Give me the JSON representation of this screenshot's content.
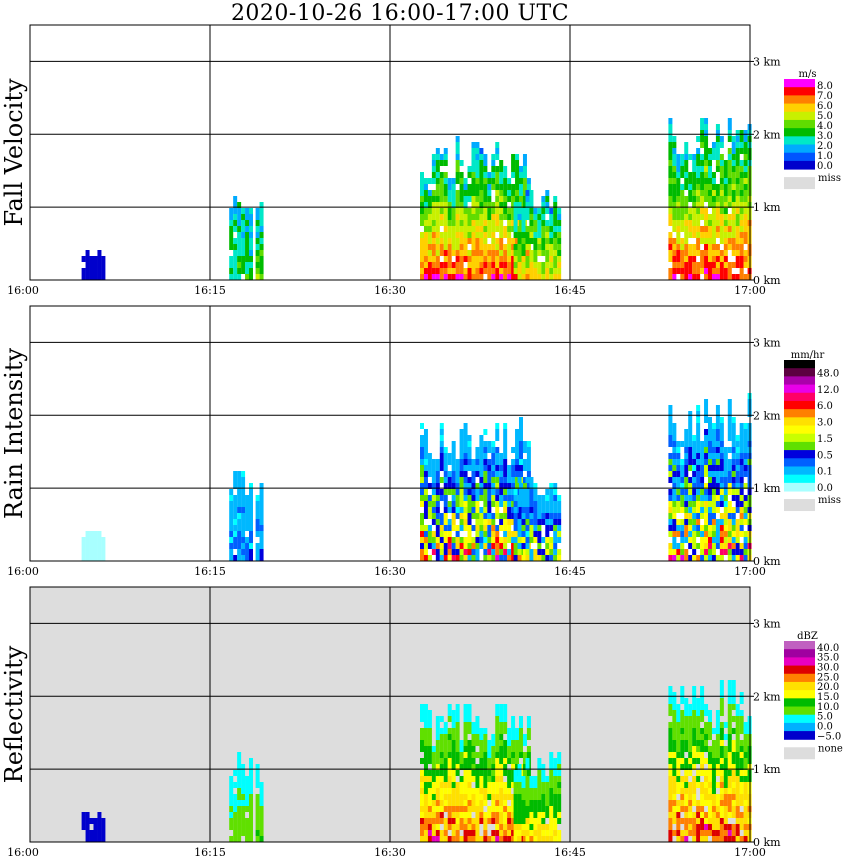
{
  "title": "2020-10-26   16:00-17:00 UTC",
  "chart_data": [
    {
      "type": "heatmap",
      "ylabel": "Fall Velocity",
      "x_ticks": [
        "16:00",
        "16:15",
        "16:30",
        "16:45",
        "17:00"
      ],
      "y_ticks": [
        "0 km",
        "1 km",
        "2 km",
        "3 km"
      ],
      "background": "#ffffff",
      "legend": {
        "title": "m/s",
        "labels": [
          "8.0",
          "7.0",
          "6.0",
          "5.0",
          "4.0",
          "3.0",
          "2.0",
          "1.0",
          "0.0"
        ],
        "colors": [
          "#ff00ff",
          "#ff0000",
          "#ff7f00",
          "#ffd000",
          "#c8f000",
          "#60dc00",
          "#00bb00",
          "#00e8c8",
          "#00aaff",
          "#0055ff",
          "#0000cc"
        ],
        "missing_label": "miss",
        "missing_color": "#dddddd"
      }
    },
    {
      "type": "heatmap",
      "ylabel": "Rain Intensity",
      "x_ticks": [
        "16:00",
        "16:15",
        "16:30",
        "16:45",
        "17:00"
      ],
      "y_ticks": [
        "0 km",
        "1 km",
        "2 km",
        "3 km"
      ],
      "background": "#ffffff",
      "legend": {
        "title": "mm/hr",
        "labels": [
          "48.0",
          "12.0",
          "6.0",
          "3.0",
          "1.5",
          "0.5",
          "0.1",
          "0.0"
        ],
        "colors": [
          "#000000",
          "#5c0040",
          "#aa00aa",
          "#e800e8",
          "#ff0066",
          "#ff0000",
          "#ff8000",
          "#ffe000",
          "#ffff00",
          "#c8ff00",
          "#60e000",
          "#0000dd",
          "#0060ff",
          "#00b8ff",
          "#00ffff",
          "#a8ffff"
        ],
        "missing_label": "miss",
        "missing_color": "#dddddd"
      }
    },
    {
      "type": "heatmap",
      "ylabel": "Reflectivity",
      "x_ticks": [
        "16:00",
        "16:15",
        "16:30",
        "16:45",
        "17:00"
      ],
      "y_ticks": [
        "0 km",
        "1 km",
        "2 km",
        "3 km"
      ],
      "background": "#dddddd",
      "legend": {
        "title": "dBZ",
        "labels": [
          "40.0",
          "35.0",
          "30.0",
          "25.0",
          "20.0",
          "15.0",
          "10.0",
          "5.0",
          "0.0",
          "−5.0"
        ],
        "colors": [
          "#c060c0",
          "#a000a0",
          "#e800c0",
          "#dd0000",
          "#ff8000",
          "#ffe000",
          "#ffff00",
          "#00bb00",
          "#60e000",
          "#00ffff",
          "#00b0ff",
          "#0000cc"
        ],
        "missing_label": "none",
        "missing_color": "#dddddd"
      }
    }
  ]
}
